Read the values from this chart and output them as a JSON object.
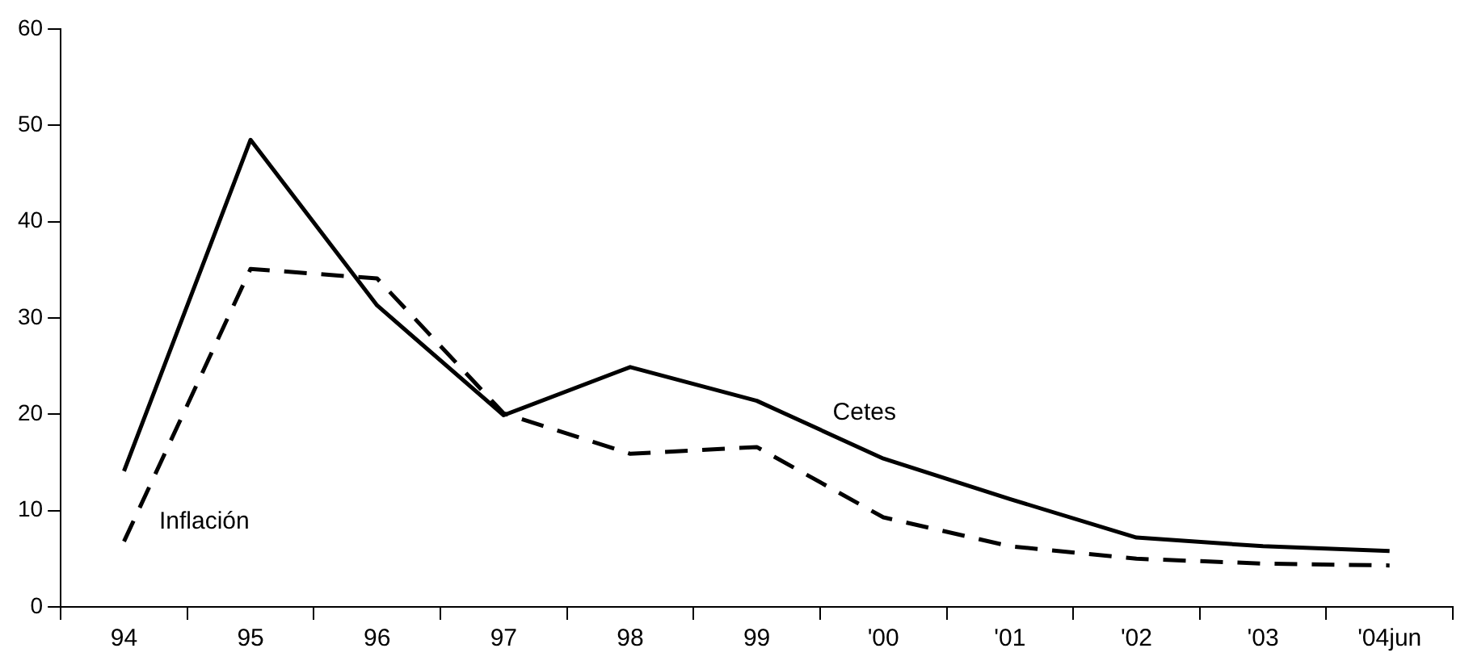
{
  "chart_data": {
    "type": "line",
    "categories": [
      "94",
      "95",
      "96",
      "97",
      "98",
      "99",
      "'00",
      "'01",
      "'02",
      "'03",
      "'04jun"
    ],
    "series": [
      {
        "name": "Cetes",
        "color": "#000000",
        "line_style": "solid",
        "values": [
          14.1,
          48.5,
          31.3,
          19.9,
          24.9,
          21.4,
          15.4,
          11.2,
          7.2,
          6.3,
          5.8
        ]
      },
      {
        "name": "Inflación",
        "color": "#000000",
        "line_style": "dashed",
        "values": [
          6.8,
          35.1,
          34.1,
          20.1,
          15.9,
          16.6,
          9.3,
          6.3,
          5.0,
          4.5,
          4.3
        ]
      }
    ],
    "ylim": [
      0,
      60
    ],
    "yticks": [
      0,
      10,
      20,
      30,
      40,
      50,
      60
    ],
    "grid": false,
    "legend": false,
    "marker": "none"
  }
}
